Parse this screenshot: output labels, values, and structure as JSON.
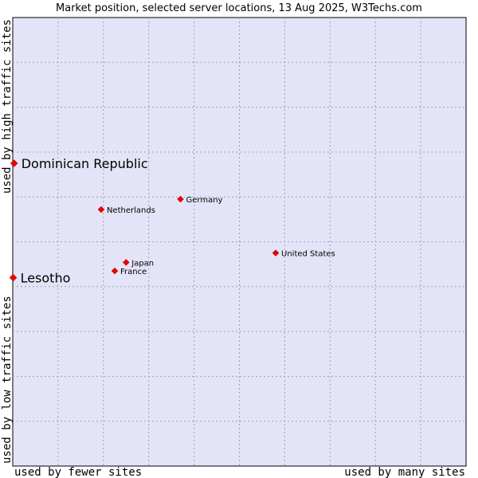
{
  "chart_data": {
    "type": "scatter",
    "title": "Market position, selected server locations, 13 Aug 2025, W3Techs.com",
    "xlabel_low": "used by fewer sites",
    "xlabel_high": "used by many sites",
    "ylabel_low": "used by low traffic sites",
    "ylabel_high": "used by high traffic sites",
    "xlim": [
      0,
      100
    ],
    "ylim": [
      0,
      100
    ],
    "grid": true,
    "colors": {
      "plot_background": "#e4e4f8",
      "marker": "#ee0000",
      "grid": "#a0a0b0"
    },
    "points": [
      {
        "label": "Dominican Republic",
        "x": 0.3,
        "y": 67.5,
        "highlight": true
      },
      {
        "label": "Lesotho",
        "x": 0.1,
        "y": 42.0,
        "highlight": true
      },
      {
        "label": "Germany",
        "x": 37.0,
        "y": 59.5,
        "highlight": false
      },
      {
        "label": "Netherlands",
        "x": 19.5,
        "y": 57.2,
        "highlight": false
      },
      {
        "label": "United States",
        "x": 58.0,
        "y": 47.5,
        "highlight": false
      },
      {
        "label": "Japan",
        "x": 25.0,
        "y": 45.4,
        "highlight": false
      },
      {
        "label": "France",
        "x": 22.5,
        "y": 43.5,
        "highlight": false
      }
    ]
  }
}
